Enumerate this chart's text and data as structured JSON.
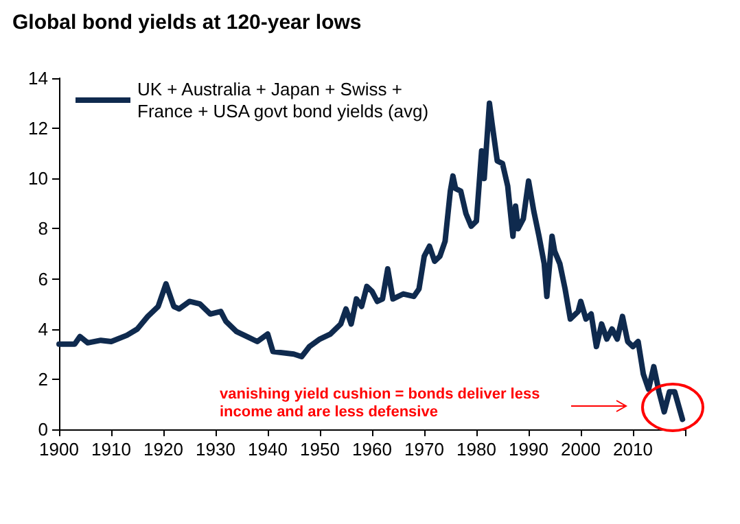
{
  "chart_data": {
    "type": "line",
    "title": "Global bond yields at 120-year lows",
    "xlim": [
      1900,
      2020
    ],
    "xticks": [
      1900,
      1910,
      1920,
      1930,
      1940,
      1950,
      1960,
      1970,
      1980,
      1990,
      2000,
      2010,
      {
        "value": 2020,
        "label": null
      }
    ],
    "ylim": [
      0,
      14
    ],
    "yticks": [
      0,
      2,
      4,
      6,
      8,
      10,
      12,
      14
    ],
    "grid": false,
    "legend": "top left",
    "marker": "none",
    "line_style": "solid",
    "annotations": [
      "vanishing yield cushion = bonds deliver less income and are less defensive"
    ],
    "series": [
      {
        "name": "UK + Australia + Japan + Swiss + France + USA govt bond yields (avg)",
        "color": "#0f2a4e",
        "x": [
          1900,
          1903,
          1904,
          1905.5,
          1908,
          1910,
          1913,
          1915,
          1917,
          1919,
          1920.5,
          1922,
          1923,
          1925,
          1927,
          1929,
          1931,
          1932,
          1934,
          1936,
          1938,
          1940,
          1941,
          1945,
          1946.5,
          1948,
          1950,
          1952,
          1954,
          1955,
          1956,
          1957,
          1958,
          1959,
          1960,
          1961,
          1962,
          1963,
          1964,
          1966,
          1968,
          1969,
          1970,
          1971,
          1972,
          1973,
          1974,
          1975,
          1975.5,
          1976,
          1977,
          1978,
          1979,
          1980,
          1981,
          1981.5,
          1982.5,
          1983,
          1984,
          1985,
          1986,
          1987,
          1987.5,
          1988,
          1989,
          1990,
          1991,
          1992,
          1993,
          1993.5,
          1994.5,
          1995,
          1996,
          1997,
          1998,
          1999.5,
          2000,
          2001,
          2002,
          2003,
          2004,
          2005,
          2006,
          2007,
          2008,
          2009,
          2010,
          2011,
          2012,
          2013,
          2014,
          2015,
          2016,
          2017,
          2018,
          2019.5
        ],
        "values": [
          3.4,
          3.4,
          3.7,
          3.45,
          3.55,
          3.5,
          3.75,
          4.0,
          4.5,
          4.9,
          5.8,
          4.9,
          4.8,
          5.1,
          5.0,
          4.6,
          4.7,
          4.3,
          3.9,
          3.7,
          3.5,
          3.8,
          3.1,
          3.0,
          2.9,
          3.3,
          3.6,
          3.8,
          4.2,
          4.8,
          4.2,
          5.2,
          4.9,
          5.7,
          5.5,
          5.1,
          5.2,
          6.4,
          5.2,
          5.4,
          5.3,
          5.6,
          6.9,
          7.3,
          6.7,
          6.9,
          7.5,
          9.5,
          10.1,
          9.6,
          9.5,
          8.6,
          8.1,
          8.3,
          11.1,
          10.0,
          13.0,
          12.2,
          10.7,
          10.6,
          9.7,
          7.7,
          8.9,
          8.0,
          8.4,
          9.9,
          8.7,
          7.7,
          6.6,
          5.3,
          7.7,
          7.1,
          6.6,
          5.6,
          4.4,
          4.7,
          5.1,
          4.4,
          4.6,
          3.3,
          4.2,
          3.6,
          4.0,
          3.6,
          4.5,
          3.5,
          3.3,
          3.5,
          2.2,
          1.6,
          2.5,
          1.5,
          0.7,
          1.5,
          1.5,
          0.4
        ]
      }
    ]
  }
}
